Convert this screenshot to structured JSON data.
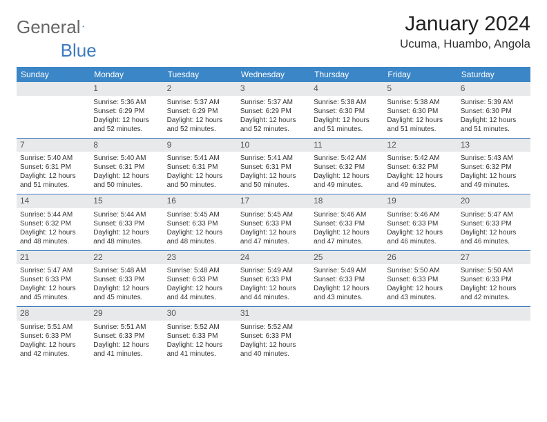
{
  "logo": {
    "text1": "General",
    "text2": "Blue"
  },
  "title": "January 2024",
  "location": "Ucuma, Huambo, Angola",
  "colors": {
    "header_bg": "#3b86c7",
    "header_text": "#ffffff",
    "daynum_bg": "#e8e9ea",
    "border": "#3b7bbf",
    "logo_gray": "#666666",
    "logo_blue": "#3b7bbf"
  },
  "day_headers": [
    "Sunday",
    "Monday",
    "Tuesday",
    "Wednesday",
    "Thursday",
    "Friday",
    "Saturday"
  ],
  "weeks": [
    [
      {
        "n": "",
        "lines": []
      },
      {
        "n": "1",
        "lines": [
          "Sunrise: 5:36 AM",
          "Sunset: 6:29 PM",
          "Daylight: 12 hours and 52 minutes."
        ]
      },
      {
        "n": "2",
        "lines": [
          "Sunrise: 5:37 AM",
          "Sunset: 6:29 PM",
          "Daylight: 12 hours and 52 minutes."
        ]
      },
      {
        "n": "3",
        "lines": [
          "Sunrise: 5:37 AM",
          "Sunset: 6:29 PM",
          "Daylight: 12 hours and 52 minutes."
        ]
      },
      {
        "n": "4",
        "lines": [
          "Sunrise: 5:38 AM",
          "Sunset: 6:30 PM",
          "Daylight: 12 hours and 51 minutes."
        ]
      },
      {
        "n": "5",
        "lines": [
          "Sunrise: 5:38 AM",
          "Sunset: 6:30 PM",
          "Daylight: 12 hours and 51 minutes."
        ]
      },
      {
        "n": "6",
        "lines": [
          "Sunrise: 5:39 AM",
          "Sunset: 6:30 PM",
          "Daylight: 12 hours and 51 minutes."
        ]
      }
    ],
    [
      {
        "n": "7",
        "lines": [
          "Sunrise: 5:40 AM",
          "Sunset: 6:31 PM",
          "Daylight: 12 hours and 51 minutes."
        ]
      },
      {
        "n": "8",
        "lines": [
          "Sunrise: 5:40 AM",
          "Sunset: 6:31 PM",
          "Daylight: 12 hours and 50 minutes."
        ]
      },
      {
        "n": "9",
        "lines": [
          "Sunrise: 5:41 AM",
          "Sunset: 6:31 PM",
          "Daylight: 12 hours and 50 minutes."
        ]
      },
      {
        "n": "10",
        "lines": [
          "Sunrise: 5:41 AM",
          "Sunset: 6:31 PM",
          "Daylight: 12 hours and 50 minutes."
        ]
      },
      {
        "n": "11",
        "lines": [
          "Sunrise: 5:42 AM",
          "Sunset: 6:32 PM",
          "Daylight: 12 hours and 49 minutes."
        ]
      },
      {
        "n": "12",
        "lines": [
          "Sunrise: 5:42 AM",
          "Sunset: 6:32 PM",
          "Daylight: 12 hours and 49 minutes."
        ]
      },
      {
        "n": "13",
        "lines": [
          "Sunrise: 5:43 AM",
          "Sunset: 6:32 PM",
          "Daylight: 12 hours and 49 minutes."
        ]
      }
    ],
    [
      {
        "n": "14",
        "lines": [
          "Sunrise: 5:44 AM",
          "Sunset: 6:32 PM",
          "Daylight: 12 hours and 48 minutes."
        ]
      },
      {
        "n": "15",
        "lines": [
          "Sunrise: 5:44 AM",
          "Sunset: 6:33 PM",
          "Daylight: 12 hours and 48 minutes."
        ]
      },
      {
        "n": "16",
        "lines": [
          "Sunrise: 5:45 AM",
          "Sunset: 6:33 PM",
          "Daylight: 12 hours and 48 minutes."
        ]
      },
      {
        "n": "17",
        "lines": [
          "Sunrise: 5:45 AM",
          "Sunset: 6:33 PM",
          "Daylight: 12 hours and 47 minutes."
        ]
      },
      {
        "n": "18",
        "lines": [
          "Sunrise: 5:46 AM",
          "Sunset: 6:33 PM",
          "Daylight: 12 hours and 47 minutes."
        ]
      },
      {
        "n": "19",
        "lines": [
          "Sunrise: 5:46 AM",
          "Sunset: 6:33 PM",
          "Daylight: 12 hours and 46 minutes."
        ]
      },
      {
        "n": "20",
        "lines": [
          "Sunrise: 5:47 AM",
          "Sunset: 6:33 PM",
          "Daylight: 12 hours and 46 minutes."
        ]
      }
    ],
    [
      {
        "n": "21",
        "lines": [
          "Sunrise: 5:47 AM",
          "Sunset: 6:33 PM",
          "Daylight: 12 hours and 45 minutes."
        ]
      },
      {
        "n": "22",
        "lines": [
          "Sunrise: 5:48 AM",
          "Sunset: 6:33 PM",
          "Daylight: 12 hours and 45 minutes."
        ]
      },
      {
        "n": "23",
        "lines": [
          "Sunrise: 5:48 AM",
          "Sunset: 6:33 PM",
          "Daylight: 12 hours and 44 minutes."
        ]
      },
      {
        "n": "24",
        "lines": [
          "Sunrise: 5:49 AM",
          "Sunset: 6:33 PM",
          "Daylight: 12 hours and 44 minutes."
        ]
      },
      {
        "n": "25",
        "lines": [
          "Sunrise: 5:49 AM",
          "Sunset: 6:33 PM",
          "Daylight: 12 hours and 43 minutes."
        ]
      },
      {
        "n": "26",
        "lines": [
          "Sunrise: 5:50 AM",
          "Sunset: 6:33 PM",
          "Daylight: 12 hours and 43 minutes."
        ]
      },
      {
        "n": "27",
        "lines": [
          "Sunrise: 5:50 AM",
          "Sunset: 6:33 PM",
          "Daylight: 12 hours and 42 minutes."
        ]
      }
    ],
    [
      {
        "n": "28",
        "lines": [
          "Sunrise: 5:51 AM",
          "Sunset: 6:33 PM",
          "Daylight: 12 hours and 42 minutes."
        ]
      },
      {
        "n": "29",
        "lines": [
          "Sunrise: 5:51 AM",
          "Sunset: 6:33 PM",
          "Daylight: 12 hours and 41 minutes."
        ]
      },
      {
        "n": "30",
        "lines": [
          "Sunrise: 5:52 AM",
          "Sunset: 6:33 PM",
          "Daylight: 12 hours and 41 minutes."
        ]
      },
      {
        "n": "31",
        "lines": [
          "Sunrise: 5:52 AM",
          "Sunset: 6:33 PM",
          "Daylight: 12 hours and 40 minutes."
        ]
      },
      {
        "n": "",
        "lines": []
      },
      {
        "n": "",
        "lines": []
      },
      {
        "n": "",
        "lines": []
      }
    ]
  ]
}
